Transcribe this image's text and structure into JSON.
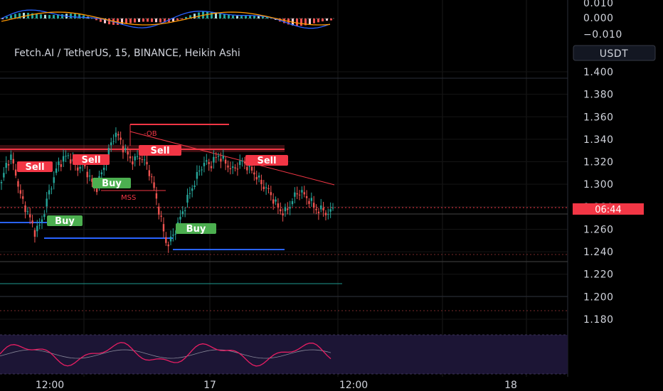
{
  "symbol_title": "Fetch.AI / TetherUS, 15, BINANCE, Heikin Ashi",
  "currency_button": "USDT",
  "countdown": "06:44",
  "colors": {
    "up": "#26a69a",
    "down": "#ef5350",
    "level_red": "#f23645",
    "level_blue": "#2962ff",
    "buy_tag": "#4caf50",
    "sell_tag": "#f23645",
    "teal_line": "#1e9a8f",
    "macd_line": "#2962ff",
    "signal_line": "#ff9800",
    "rsi_line": "#e91e63",
    "rsi_band": "#1c1535"
  },
  "annotations": {
    "ob_label": "-OB",
    "mss_label": "MSS",
    "sell_labels": [
      "Sell",
      "Sell",
      "Sell",
      "Sell"
    ],
    "buy_labels": [
      "Buy",
      "Buy",
      "Buy"
    ]
  },
  "chart_data": [
    {
      "type": "candlestick",
      "title": "Fetch.AI / TetherUS, 15, BINANCE, Heikin Ashi",
      "ylim": [
        1.17,
        1.41
      ],
      "y_ticks": [
        "1.400",
        "1.380",
        "1.360",
        "1.340",
        "1.320",
        "1.300",
        "1.280",
        "1.260",
        "1.240",
        "1.220",
        "1.200",
        "1.180"
      ],
      "x_ticks": [
        "12:00",
        "17",
        "12:00",
        "18"
      ],
      "last_price": 1.277,
      "close_path": [
        1.3,
        1.318,
        1.324,
        1.31,
        1.29,
        1.28,
        1.27,
        1.258,
        1.262,
        1.275,
        1.292,
        1.305,
        1.318,
        1.322,
        1.326,
        1.32,
        1.314,
        1.318,
        1.312,
        1.302,
        1.296,
        1.308,
        1.32,
        1.334,
        1.346,
        1.34,
        1.33,
        1.324,
        1.32,
        1.326,
        1.321,
        1.315,
        1.3,
        1.282,
        1.262,
        1.245,
        1.252,
        1.262,
        1.272,
        1.284,
        1.294,
        1.304,
        1.314,
        1.32,
        1.317,
        1.322,
        1.326,
        1.32,
        1.316,
        1.312,
        1.318,
        1.32,
        1.316,
        1.312,
        1.306,
        1.3,
        1.296,
        1.29,
        1.282,
        1.276,
        1.275,
        1.282,
        1.29,
        1.294,
        1.29,
        1.286,
        1.28,
        1.276,
        1.278,
        1.272,
        1.28
      ]
    },
    {
      "type": "bar",
      "name": "MACD",
      "y_ticks": [
        "0.010",
        "0.000",
        "−0.010"
      ]
    },
    {
      "type": "line",
      "name": "RSI"
    }
  ]
}
